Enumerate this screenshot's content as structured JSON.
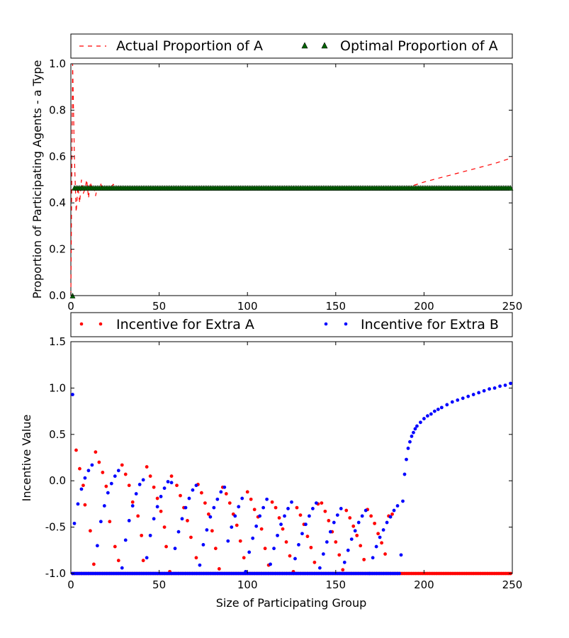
{
  "chart_data": [
    {
      "type": "line",
      "title": "",
      "xlabel": "",
      "ylabel": "Proportion of Participating Agents - a Type",
      "xlim": [
        0,
        250
      ],
      "ylim": [
        0,
        1.0
      ],
      "xticks": [
        "0",
        "50",
        "100",
        "150",
        "200",
        "250"
      ],
      "yticks": [
        "0.0",
        "0.2",
        "0.4",
        "0.6",
        "0.8",
        "1.0"
      ],
      "grid": false,
      "legend_position": "above-plot",
      "series": [
        {
          "name": "Actual Proportion of A",
          "style": "dashed-line",
          "color": "#ff0000",
          "points": [
            [
              0,
              0
            ],
            [
              1,
              1.0
            ],
            [
              2,
              0.6
            ],
            [
              3,
              0.36
            ],
            [
              4,
              0.47
            ],
            [
              5,
              0.4
            ],
            [
              6,
              0.5
            ],
            [
              7,
              0.44
            ],
            [
              8,
              0.46
            ],
            [
              9,
              0.5
            ],
            [
              10,
              0.42
            ],
            [
              11,
              0.49
            ],
            [
              12,
              0.46
            ],
            [
              13,
              0.47
            ],
            [
              14,
              0.43
            ],
            [
              15,
              0.47
            ],
            [
              16,
              0.46
            ],
            [
              17,
              0.48
            ],
            [
              18,
              0.46
            ],
            [
              20,
              0.47
            ],
            [
              22,
              0.46
            ],
            [
              24,
              0.48
            ],
            [
              26,
              0.465
            ],
            [
              28,
              0.47
            ],
            [
              30,
              0.465
            ],
            [
              40,
              0.465
            ],
            [
              100,
              0.465
            ],
            [
              190,
              0.465
            ],
            [
              200,
              0.49
            ],
            [
              210,
              0.51
            ],
            [
              220,
              0.53
            ],
            [
              230,
              0.55
            ],
            [
              240,
              0.57
            ],
            [
              250,
              0.595
            ]
          ]
        },
        {
          "name": "Optimal Proportion of A",
          "style": "triangle-markers",
          "color": "#006400",
          "x_range": [
            1,
            249
          ],
          "x_step": 1,
          "y": 0.465,
          "first_point": [
            1,
            0.0
          ]
        }
      ]
    },
    {
      "type": "scatter",
      "title": "",
      "xlabel": "Size of Participating Group",
      "ylabel": "Incentive Value",
      "xlim": [
        0,
        250
      ],
      "ylim": [
        -1.0,
        1.5
      ],
      "xticks": [
        "0",
        "50",
        "100",
        "150",
        "200",
        "250"
      ],
      "yticks": [
        "-1.0",
        "-0.5",
        "0.0",
        "0.5",
        "1.0",
        "1.5"
      ],
      "grid": false,
      "legend_position": "above-plot",
      "series": [
        {
          "name": "Incentive for Extra A",
          "style": "dot-markers",
          "color": "#ff0000",
          "description_points": [
            [
              1,
              -1.0
            ],
            [
              3,
              0.33
            ],
            [
              5,
              0.13
            ],
            [
              7,
              -0.05
            ],
            [
              8,
              -0.26
            ],
            [
              11,
              -0.54
            ],
            [
              13,
              -0.9
            ],
            [
              14,
              0.31
            ],
            [
              16,
              0.2
            ],
            [
              18,
              0.09
            ],
            [
              20,
              -0.06
            ],
            [
              22,
              -0.44
            ],
            [
              25,
              -0.71
            ],
            [
              27,
              -0.86
            ],
            [
              29,
              0.17
            ],
            [
              31,
              0.07
            ],
            [
              33,
              -0.05
            ],
            [
              35,
              -0.23
            ],
            [
              38,
              -0.38
            ],
            [
              40,
              -0.59
            ],
            [
              41,
              -0.86
            ],
            [
              43,
              0.15
            ],
            [
              45,
              0.05
            ],
            [
              47,
              -0.07
            ],
            [
              49,
              -0.19
            ],
            [
              51,
              -0.33
            ],
            [
              53,
              -0.5
            ],
            [
              54,
              -0.71
            ],
            [
              56,
              -0.98
            ],
            [
              57,
              0.05
            ],
            [
              60,
              -0.05
            ],
            [
              62,
              -0.16
            ],
            [
              64,
              -0.29
            ],
            [
              66,
              -0.43
            ],
            [
              68,
              -0.61
            ],
            [
              71,
              -0.83
            ],
            [
              72,
              -0.04
            ],
            [
              74,
              -0.13
            ],
            [
              76,
              -0.24
            ],
            [
              78,
              -0.36
            ],
            [
              80,
              -0.54
            ],
            [
              82,
              -0.73
            ],
            [
              84,
              -0.95
            ],
            [
              86,
              -0.07
            ],
            [
              88,
              -0.14
            ],
            [
              90,
              -0.24
            ],
            [
              92,
              -0.36
            ],
            [
              94,
              -0.48
            ],
            [
              96,
              -0.65
            ],
            [
              98,
              -0.83
            ],
            [
              100,
              -0.12
            ],
            [
              102,
              -0.2
            ],
            [
              104,
              -0.31
            ],
            [
              106,
              -0.39
            ],
            [
              108,
              -0.52
            ],
            [
              110,
              -0.73
            ],
            [
              112,
              -0.91
            ],
            [
              114,
              -0.23
            ],
            [
              116,
              -0.29
            ],
            [
              118,
              -0.4
            ],
            [
              120,
              -0.52
            ],
            [
              122,
              -0.66
            ],
            [
              124,
              -0.81
            ],
            [
              126,
              -0.98
            ],
            [
              128,
              -0.29
            ],
            [
              130,
              -0.37
            ],
            [
              132,
              -0.47
            ],
            [
              134,
              -0.6
            ],
            [
              136,
              -0.72
            ],
            [
              138,
              -0.88
            ],
            [
              140,
              -0.25
            ],
            [
              142,
              -0.24
            ],
            [
              144,
              -0.33
            ],
            [
              146,
              -0.43
            ],
            [
              148,
              -0.55
            ],
            [
              150,
              -0.66
            ],
            [
              152,
              -0.8
            ],
            [
              154,
              -0.96
            ],
            [
              156,
              -0.32
            ],
            [
              158,
              -0.4
            ],
            [
              160,
              -0.49
            ],
            [
              162,
              -0.59
            ],
            [
              164,
              -0.7
            ],
            [
              166,
              -0.85
            ],
            [
              168,
              -0.31
            ],
            [
              170,
              -0.38
            ],
            [
              172,
              -0.46
            ],
            [
              174,
              -0.57
            ],
            [
              176,
              -0.67
            ],
            [
              178,
              -0.79
            ],
            [
              180,
              -0.38
            ],
            [
              182,
              -0.36
            ]
          ],
          "baseline_y": -1.0,
          "baseline_x_range": [
            1,
            249
          ]
        },
        {
          "name": "Incentive for Extra B",
          "style": "dot-markers",
          "color": "#0000ff",
          "description_points": [
            [
              1,
              0.93
            ],
            [
              2,
              -0.46
            ],
            [
              4,
              -0.25
            ],
            [
              6,
              -0.09
            ],
            [
              8,
              0.03
            ],
            [
              10,
              0.11
            ],
            [
              12,
              0.17
            ],
            [
              15,
              -0.7
            ],
            [
              17,
              -0.44
            ],
            [
              19,
              -0.27
            ],
            [
              21,
              -0.13
            ],
            [
              23,
              -0.03
            ],
            [
              25,
              0.05
            ],
            [
              27,
              0.11
            ],
            [
              29,
              -0.94
            ],
            [
              31,
              -0.64
            ],
            [
              33,
              -0.43
            ],
            [
              35,
              -0.27
            ],
            [
              37,
              -0.14
            ],
            [
              39,
              -0.04
            ],
            [
              41,
              0.01
            ],
            [
              43,
              -0.83
            ],
            [
              45,
              -0.59
            ],
            [
              47,
              -0.41
            ],
            [
              49,
              -0.28
            ],
            [
              51,
              -0.17
            ],
            [
              53,
              -0.08
            ],
            [
              55,
              -0.01
            ],
            [
              57,
              -0.02
            ],
            [
              59,
              -0.73
            ],
            [
              61,
              -0.55
            ],
            [
              63,
              -0.41
            ],
            [
              65,
              -0.29
            ],
            [
              67,
              -0.19
            ],
            [
              69,
              -0.1
            ],
            [
              71,
              -0.05
            ],
            [
              73,
              -0.91
            ],
            [
              75,
              -0.69
            ],
            [
              77,
              -0.53
            ],
            [
              79,
              -0.39
            ],
            [
              81,
              -0.29
            ],
            [
              83,
              -0.2
            ],
            [
              85,
              -0.12
            ],
            [
              87,
              -0.07
            ],
            [
              89,
              -0.65
            ],
            [
              91,
              -0.5
            ],
            [
              93,
              -0.38
            ],
            [
              95,
              -0.28
            ],
            [
              97,
              -0.19
            ],
            [
              99,
              -0.98
            ],
            [
              101,
              -0.77
            ],
            [
              103,
              -0.62
            ],
            [
              105,
              -0.49
            ],
            [
              107,
              -0.38
            ],
            [
              109,
              -0.29
            ],
            [
              111,
              -0.2
            ],
            [
              113,
              -0.9
            ],
            [
              115,
              -0.73
            ],
            [
              117,
              -0.59
            ],
            [
              119,
              -0.47
            ],
            [
              121,
              -0.38
            ],
            [
              123,
              -0.3
            ],
            [
              125,
              -0.23
            ],
            [
              127,
              -0.84
            ],
            [
              129,
              -0.69
            ],
            [
              131,
              -0.57
            ],
            [
              133,
              -0.47
            ],
            [
              135,
              -0.38
            ],
            [
              137,
              -0.3
            ],
            [
              139,
              -0.24
            ],
            [
              141,
              -0.94
            ],
            [
              143,
              -0.79
            ],
            [
              145,
              -0.66
            ],
            [
              147,
              -0.55
            ],
            [
              149,
              -0.45
            ],
            [
              151,
              -0.37
            ],
            [
              153,
              -0.3
            ],
            [
              155,
              -0.88
            ],
            [
              157,
              -0.75
            ],
            [
              159,
              -0.63
            ],
            [
              161,
              -0.54
            ],
            [
              163,
              -0.45
            ],
            [
              165,
              -0.38
            ],
            [
              167,
              -0.32
            ],
            [
              169,
              -1.0
            ],
            [
              171,
              -0.83
            ],
            [
              173,
              -0.71
            ],
            [
              175,
              -0.61
            ],
            [
              177,
              -0.53
            ],
            [
              179,
              -0.45
            ],
            [
              181,
              -0.39
            ],
            [
              183,
              -0.32
            ],
            [
              185,
              -0.27
            ],
            [
              187,
              -0.8
            ],
            [
              188,
              -0.22
            ],
            [
              189,
              0.07
            ],
            [
              190,
              0.23
            ],
            [
              191,
              0.35
            ],
            [
              192,
              0.42
            ],
            [
              193,
              0.48
            ],
            [
              194,
              0.52
            ],
            [
              195,
              0.56
            ],
            [
              196,
              0.59
            ],
            [
              198,
              0.63
            ],
            [
              200,
              0.67
            ],
            [
              202,
              0.7
            ],
            [
              204,
              0.72
            ],
            [
              206,
              0.75
            ],
            [
              208,
              0.77
            ],
            [
              210,
              0.79
            ],
            [
              213,
              0.82
            ],
            [
              216,
              0.85
            ],
            [
              219,
              0.87
            ],
            [
              222,
              0.89
            ],
            [
              225,
              0.91
            ],
            [
              228,
              0.93
            ],
            [
              231,
              0.95
            ],
            [
              234,
              0.97
            ],
            [
              237,
              0.99
            ],
            [
              240,
              1.0
            ],
            [
              243,
              1.02
            ],
            [
              246,
              1.03
            ],
            [
              249,
              1.05
            ]
          ],
          "baseline_y": -1.0,
          "baseline_x_range": [
            1,
            186
          ]
        }
      ]
    }
  ]
}
